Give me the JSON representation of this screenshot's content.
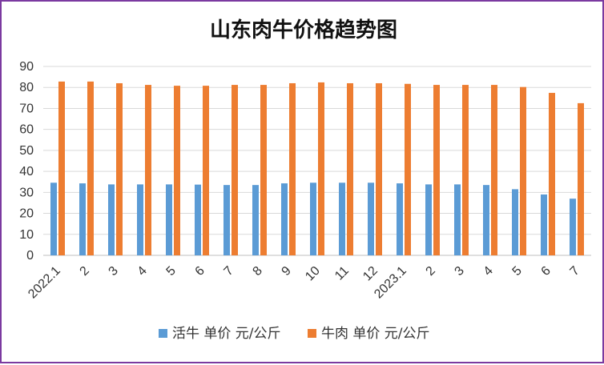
{
  "chart_data": {
    "type": "bar",
    "title": "山东肉牛价格趋势图",
    "xlabel": "",
    "ylabel": "",
    "ylim": [
      0,
      90
    ],
    "yticks": [
      0,
      10,
      20,
      30,
      40,
      50,
      60,
      70,
      80,
      90
    ],
    "grid": true,
    "legend_position": "bottom",
    "categories": [
      "2022.1",
      "2",
      "3",
      "4",
      "5",
      "6",
      "7",
      "8",
      "9",
      "10",
      "11",
      "12",
      "2023.1",
      "2",
      "3",
      "4",
      "5",
      "6",
      "7"
    ],
    "series": [
      {
        "name": "活牛 单价 元/公斤",
        "color": "#5b9bd5",
        "values": [
          34.6,
          34.3,
          33.8,
          33.8,
          33.8,
          33.7,
          33.5,
          33.5,
          34.3,
          34.6,
          34.6,
          34.6,
          34.3,
          33.8,
          33.8,
          33.5,
          31.5,
          29.0,
          27.0
        ]
      },
      {
        "name": "牛肉 单价 元/公斤",
        "color": "#ed7d31",
        "values": [
          82.8,
          82.8,
          82.0,
          81.2,
          80.8,
          80.8,
          81.2,
          81.2,
          82.0,
          82.4,
          82.0,
          82.0,
          81.7,
          81.2,
          81.2,
          81.2,
          80.2,
          77.4,
          72.5
        ]
      }
    ]
  }
}
